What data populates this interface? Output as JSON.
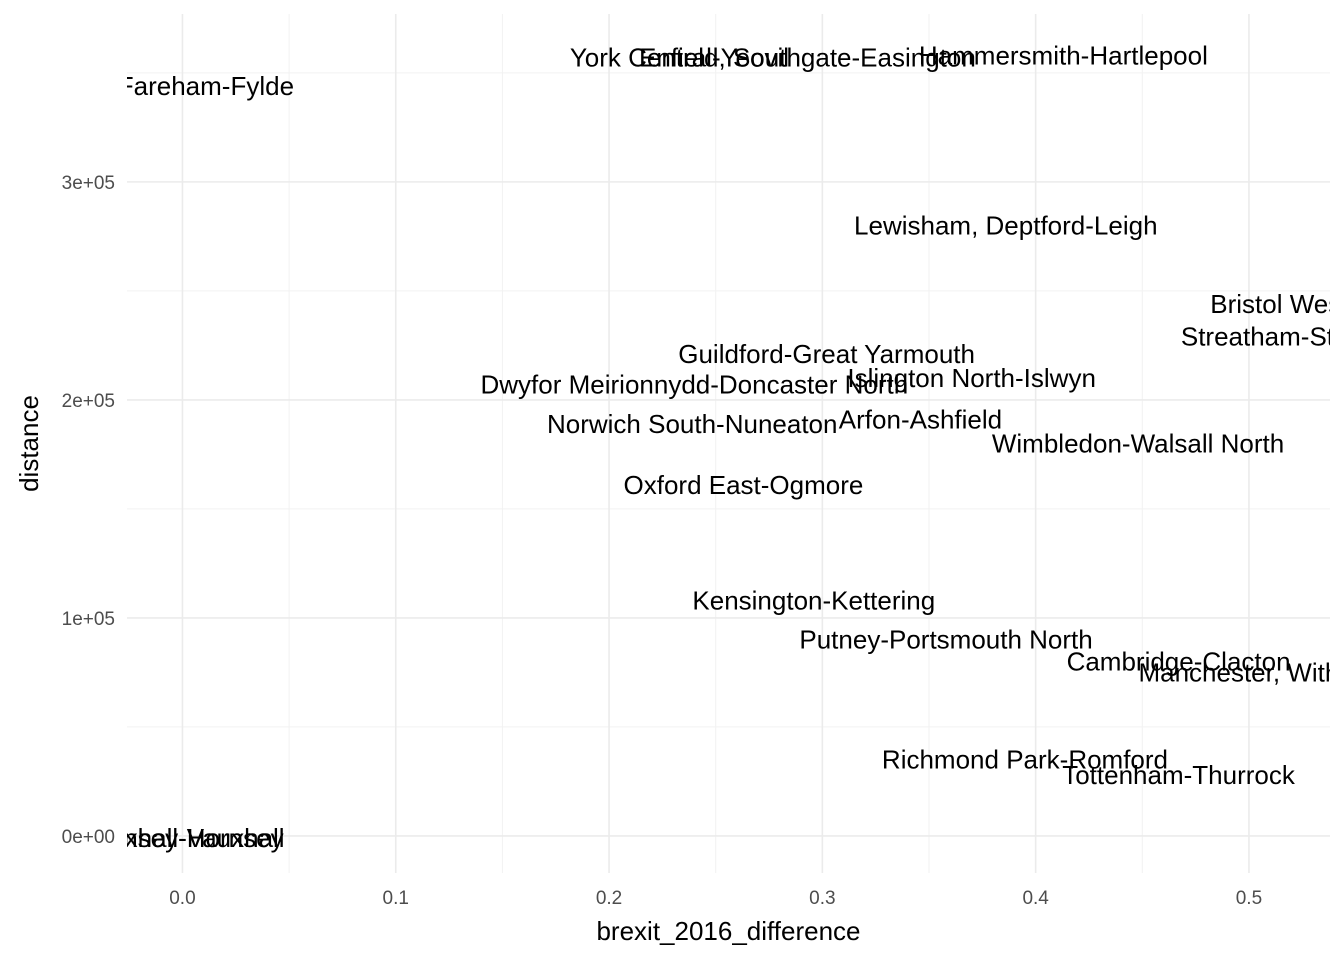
{
  "chart_data": {
    "type": "scatter",
    "title": "",
    "xlabel": "brexit_2016_difference",
    "ylabel": "distance",
    "xlim": [
      -0.026,
      0.538
    ],
    "ylim": [
      -17000,
      377000
    ],
    "x_ticks": [
      0.0,
      0.1,
      0.2,
      0.3,
      0.4,
      0.5
    ],
    "x_tick_labels": [
      "0.0",
      "0.1",
      "0.2",
      "0.3",
      "0.4",
      "0.5"
    ],
    "y_ticks": [
      0,
      100000,
      200000,
      300000
    ],
    "y_tick_labels": [
      "0e+00",
      "1e+05",
      "2e+05",
      "3e+05"
    ],
    "grid": true,
    "points": [
      {
        "label": "Hammersmith-Hartlepool",
        "x": 0.413,
        "y": 358000
      },
      {
        "label": "Enfield, Southgate-Easington",
        "x": 0.293,
        "y": 357000
      },
      {
        "label": "York Central-Yeovil",
        "x": 0.233,
        "y": 357000
      },
      {
        "label": "Fareham-Fylde",
        "x": 0.011,
        "y": 344000
      },
      {
        "label": "Lewisham, Deptford-Leigh",
        "x": 0.386,
        "y": 280000
      },
      {
        "label": "Bristol West-Barnsley",
        "x": 0.54,
        "y": 244000
      },
      {
        "label": "Streatham-Stoke-On-Trent",
        "x": 0.54,
        "y": 229000
      },
      {
        "label": "Guildford-Great Yarmouth",
        "x": 0.302,
        "y": 221000
      },
      {
        "label": "Islington North-Islwyn",
        "x": 0.37,
        "y": 210000
      },
      {
        "label": "Dwyfor Meirionnydd-Doncaster North",
        "x": 0.24,
        "y": 207000
      },
      {
        "label": "Arfon-Ashfield",
        "x": 0.346,
        "y": 191000
      },
      {
        "label": "Norwich South-Nuneaton",
        "x": 0.239,
        "y": 189000
      },
      {
        "label": "Wimbledon-Walsall North",
        "x": 0.448,
        "y": 180000
      },
      {
        "label": "Oxford East-Ogmore",
        "x": 0.263,
        "y": 161000
      },
      {
        "label": "Kensington-Kettering",
        "x": 0.296,
        "y": 108000
      },
      {
        "label": "Putney-Portsmouth North",
        "x": 0.358,
        "y": 90000
      },
      {
        "label": "Cambridge-Clacton",
        "x": 0.467,
        "y": 80000
      },
      {
        "label": "Manchester, Withington-Mansfield",
        "x": 0.54,
        "y": 75000
      },
      {
        "label": "Richmond Park-Romford",
        "x": 0.395,
        "y": 35000
      },
      {
        "label": "Tottenham-Thurrock",
        "x": 0.467,
        "y": 28000
      },
      {
        "label": "Vauxhall-Vauxhall",
        "x": 0.0,
        "y": -1000
      },
      {
        "label": "Hornsey-Hornsey",
        "x": 0.0,
        "y": -1000
      }
    ]
  }
}
